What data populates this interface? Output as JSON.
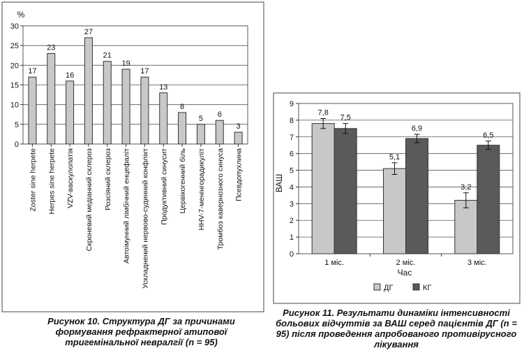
{
  "figure10": {
    "chart_data": {
      "type": "bar",
      "ylabel": "%",
      "ylim": [
        0,
        30
      ],
      "yticks": [
        0,
        5,
        10,
        15,
        20,
        25,
        30
      ],
      "grid": true,
      "bar_color": "#c8c8c8",
      "categories": [
        "Zoster sine herpete",
        "Herpes sine herpete",
        "VZV-васкулопатія",
        "Скроневий медіанний склероз",
        "Розсіяний склероз",
        "Автоімунний лімбічний енцефаліт",
        "Ускладнений нервово-судинний конфлікт",
        "Продуктивний синусит",
        "Цервікогенний біль",
        "HHV-7-менінгорадикуліт",
        "Тромбоз кавернозного синуса",
        "Псевдопухлина"
      ],
      "values": [
        17,
        23,
        16,
        27,
        21,
        19,
        17,
        13,
        8,
        5,
        6,
        3
      ]
    },
    "caption": "Рисунок 10. Структура ДГ за причинами формування рефрактерної атипової тригемінальної невралгії (n = 95)"
  },
  "figure11": {
    "chart_data": {
      "type": "bar",
      "ylabel": "ВАШ",
      "xlabel": "Час",
      "ylim": [
        0,
        9
      ],
      "yticks": [
        0,
        1,
        2,
        3,
        4,
        5,
        6,
        7,
        8,
        9
      ],
      "grid": true,
      "categories": [
        "1 міс.",
        "2 міс.",
        "3 міс."
      ],
      "series": [
        {
          "name": "ДГ",
          "values": [
            7.8,
            5.1,
            3.2
          ],
          "labels": [
            "7,8",
            "5,1",
            "3,2"
          ],
          "errors": [
            0.3,
            0.35,
            0.45
          ],
          "color": "#c8c8c8"
        },
        {
          "name": "КГ",
          "values": [
            7.5,
            6.9,
            6.5
          ],
          "labels": [
            "7,5",
            "6,9",
            "6,5"
          ],
          "errors": [
            0.3,
            0.25,
            0.25
          ],
          "color": "#5a5a5a"
        }
      ],
      "legend_position": "bottom"
    },
    "caption": "Рисунок 11. Результати динаміки інтенсивності больових відчуттів за ВАШ серед пацієнтів ДГ (n = 95) після проведення апробованого противірусного лікування"
  }
}
